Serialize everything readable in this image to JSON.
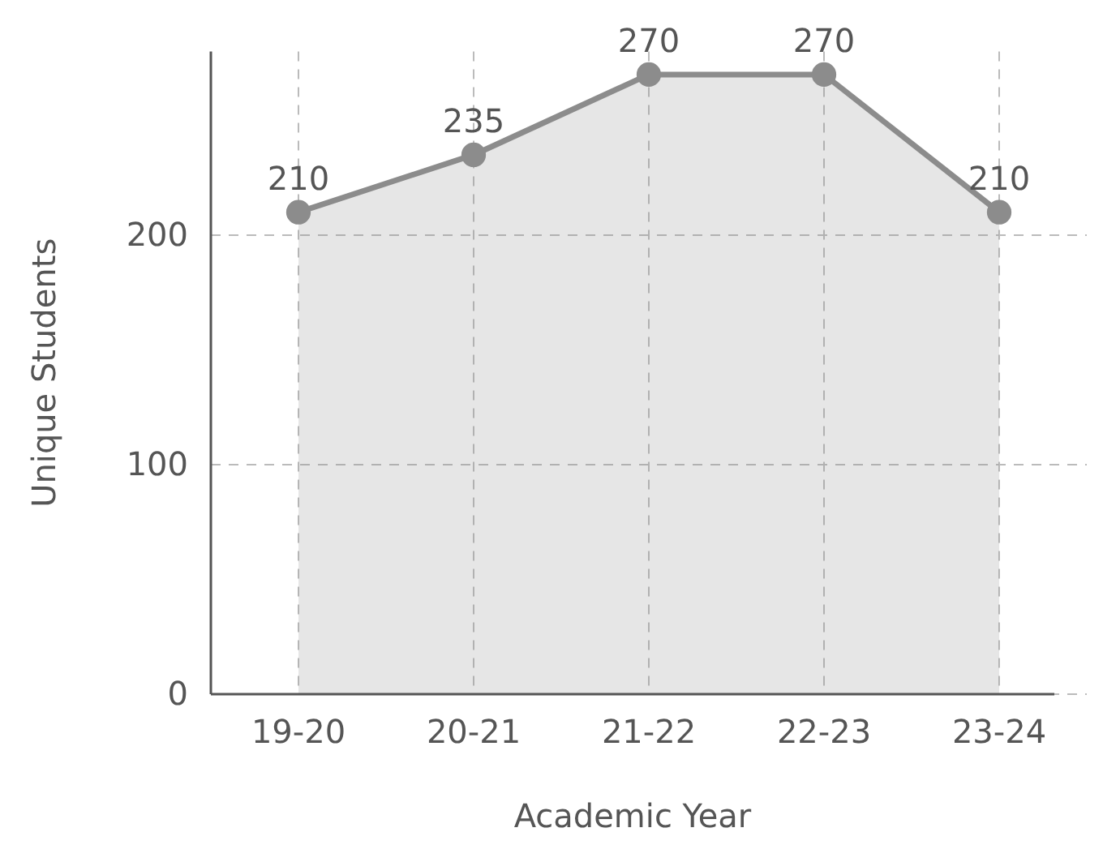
{
  "chart_data": {
    "type": "area",
    "xlabel": "Academic Year",
    "ylabel": "Unique Students",
    "categories": [
      "19-20",
      "20-21",
      "21-22",
      "22-23",
      "23-24"
    ],
    "series": [
      {
        "color": "#8c8c8c",
        "values": [
          210,
          235,
          270,
          270,
          210
        ]
      }
    ],
    "ylim": [
      0,
      280
    ],
    "yticks": [
      0,
      100,
      200
    ],
    "grid": true,
    "marker": "circle",
    "line_style": "solid",
    "data_labels": true
  }
}
